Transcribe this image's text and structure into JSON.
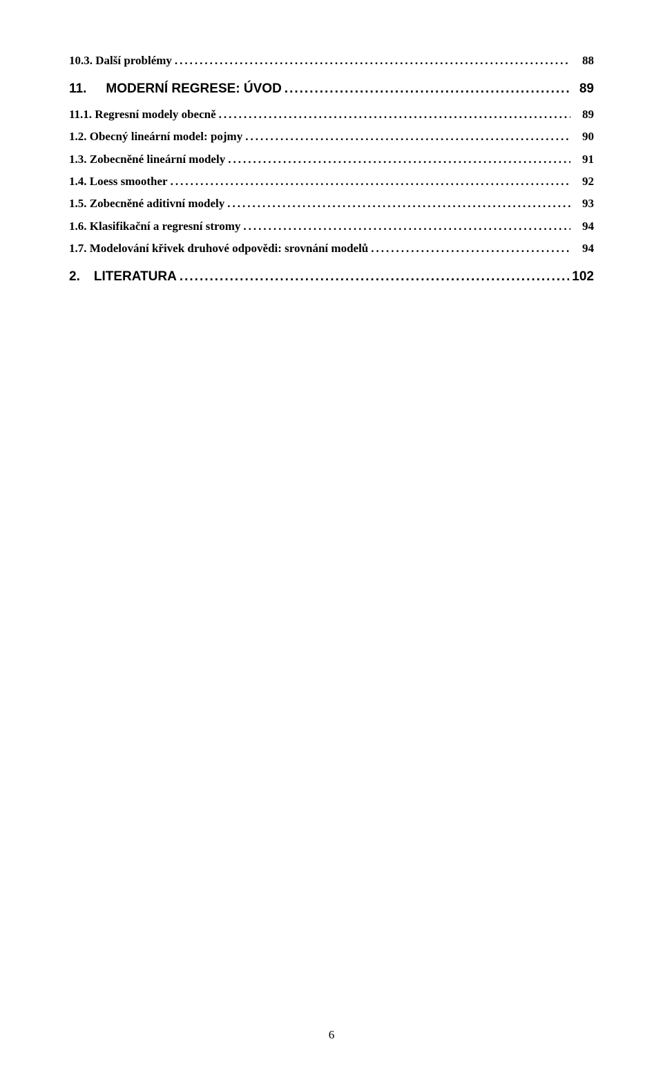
{
  "toc": {
    "item_10_3": {
      "label": "10.3. Další problémy",
      "page": "88"
    },
    "chapter_11": {
      "num": "11.",
      "title": "MODERNÍ REGRESE: ÚVOD",
      "page": "89"
    },
    "item_11_1": {
      "label": "11.1. Regresní modely obecně",
      "page": "89"
    },
    "item_11_2": {
      "label": "1.2. Obecný lineární model: pojmy",
      "page": "90"
    },
    "item_11_3": {
      "label": "1.3. Zobecněné lineární modely",
      "page": "91"
    },
    "item_11_4": {
      "label": "1.4. Loess smoother",
      "page": "92"
    },
    "item_11_5": {
      "label": "1.5. Zobecněné aditivní modely",
      "page": "93"
    },
    "item_11_6": {
      "label": "1.6. Klasifikační a regresní stromy",
      "page": "94"
    },
    "item_11_7": {
      "label": "1.7. Modelování křivek druhové odpovědi: srovnání modelů",
      "page": "94"
    },
    "chapter_2": {
      "num": "2.",
      "title": "LITERATURA",
      "page": "102"
    }
  },
  "footer": {
    "page_number": "6"
  }
}
